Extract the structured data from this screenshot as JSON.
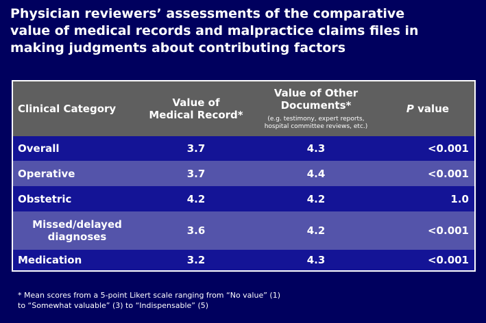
{
  "title": [
    "Physician reviewers’ assessments of the comparative",
    "value of medical records and malpractice claims files in",
    "making judgments about contributing factors"
  ],
  "table": {
    "header": {
      "category": "Clinical Category",
      "medical_record": [
        "Value of",
        "Medical Record*"
      ],
      "other_documents": [
        "Value of Other",
        "Documents*"
      ],
      "other_documents_note": [
        "(e.g. testimony, expert reports,",
        "hospital committee reviews, etc.)"
      ],
      "p_value": {
        "italic": "P",
        "text": "value"
      }
    },
    "rows": [
      [
        [
          "Overall"
        ],
        "3.7",
        "4.3",
        "<0.001"
      ],
      [
        [
          "Operative"
        ],
        "3.7",
        "4.4",
        "<0.001"
      ],
      [
        [
          "Obstetric"
        ],
        "4.2",
        "4.2",
        "1.0"
      ],
      [
        [
          "Missed/delayed",
          "diagnoses"
        ],
        "3.6",
        "4.2",
        "<0.001"
      ],
      [
        [
          "Medication"
        ],
        "3.2",
        "4.3",
        "<0.001"
      ]
    ]
  },
  "footnote": [
    "* Mean scores from a 5-point Likert scale ranging from “No value” (1)",
    "to “Somewhat valuable” (3)  to “Indispensable” (5)"
  ]
}
